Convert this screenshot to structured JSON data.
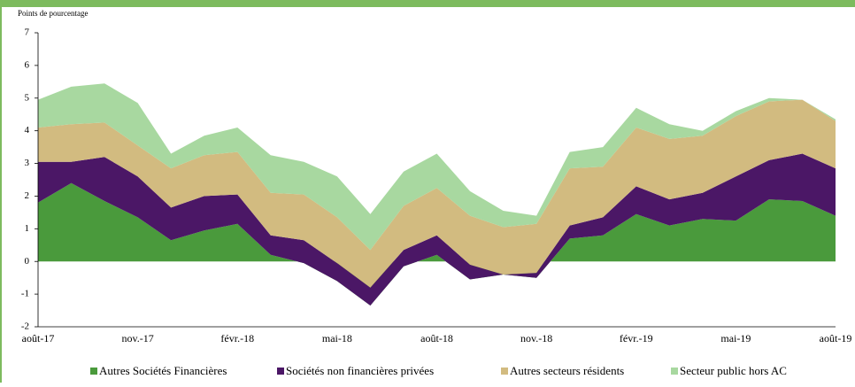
{
  "chart_data": {
    "type": "stacked_area",
    "axis_label": "Points de pourcentage",
    "categories": [
      "août-17",
      null,
      null,
      "nov.-17",
      null,
      null,
      "févr.-18",
      null,
      null,
      "mai-18",
      null,
      null,
      "août-18",
      null,
      null,
      "nov.-18",
      null,
      null,
      "févr.-19",
      null,
      null,
      "mai-19",
      null,
      null,
      "août-19"
    ],
    "series": [
      {
        "name": "Autres Sociétés Financières",
        "color": "#4a9a3c",
        "values": [
          1.8,
          2.4,
          1.85,
          1.35,
          0.65,
          0.95,
          1.15,
          0.2,
          -0.05,
          -0.6,
          -1.35,
          -0.15,
          0.2,
          -0.55,
          -0.4,
          -0.5,
          0.7,
          0.8,
          1.45,
          1.1,
          1.3,
          1.25,
          1.9,
          1.85,
          1.4
        ]
      },
      {
        "name": "Sociétés non financières privées",
        "color": "#4b1766",
        "values": [
          1.25,
          0.65,
          1.35,
          1.25,
          1.0,
          1.05,
          0.9,
          0.6,
          0.7,
          0.55,
          0.55,
          0.5,
          0.6,
          0.45,
          0,
          0.15,
          0.4,
          0.55,
          0.85,
          0.8,
          0.8,
          1.35,
          1.2,
          1.45,
          1.45
        ]
      },
      {
        "name": "Autres secteurs résidents",
        "color": "#d2bb80",
        "values": [
          1.05,
          1.15,
          1.05,
          0.95,
          1.2,
          1.25,
          1.3,
          1.3,
          1.4,
          1.4,
          1.15,
          1.35,
          1.45,
          1.5,
          1.45,
          1.5,
          1.75,
          1.55,
          1.8,
          1.85,
          1.75,
          1.85,
          1.8,
          1.65,
          1.45
        ]
      },
      {
        "name": "Secteur public hors AC",
        "color": "#a8d8a0",
        "values": [
          0.85,
          1.15,
          1.2,
          1.3,
          0.45,
          0.6,
          0.75,
          1.15,
          1.0,
          1.25,
          1.1,
          1.05,
          1.05,
          0.75,
          0.5,
          0.25,
          0.5,
          0.6,
          0.6,
          0.45,
          0.15,
          0.15,
          0.1,
          0,
          0.05
        ]
      }
    ],
    "ylim": [
      -2,
      7
    ],
    "yticks": [
      -2,
      -1,
      0,
      1,
      2,
      3,
      4,
      5,
      6,
      7
    ],
    "legend": "bottom"
  }
}
